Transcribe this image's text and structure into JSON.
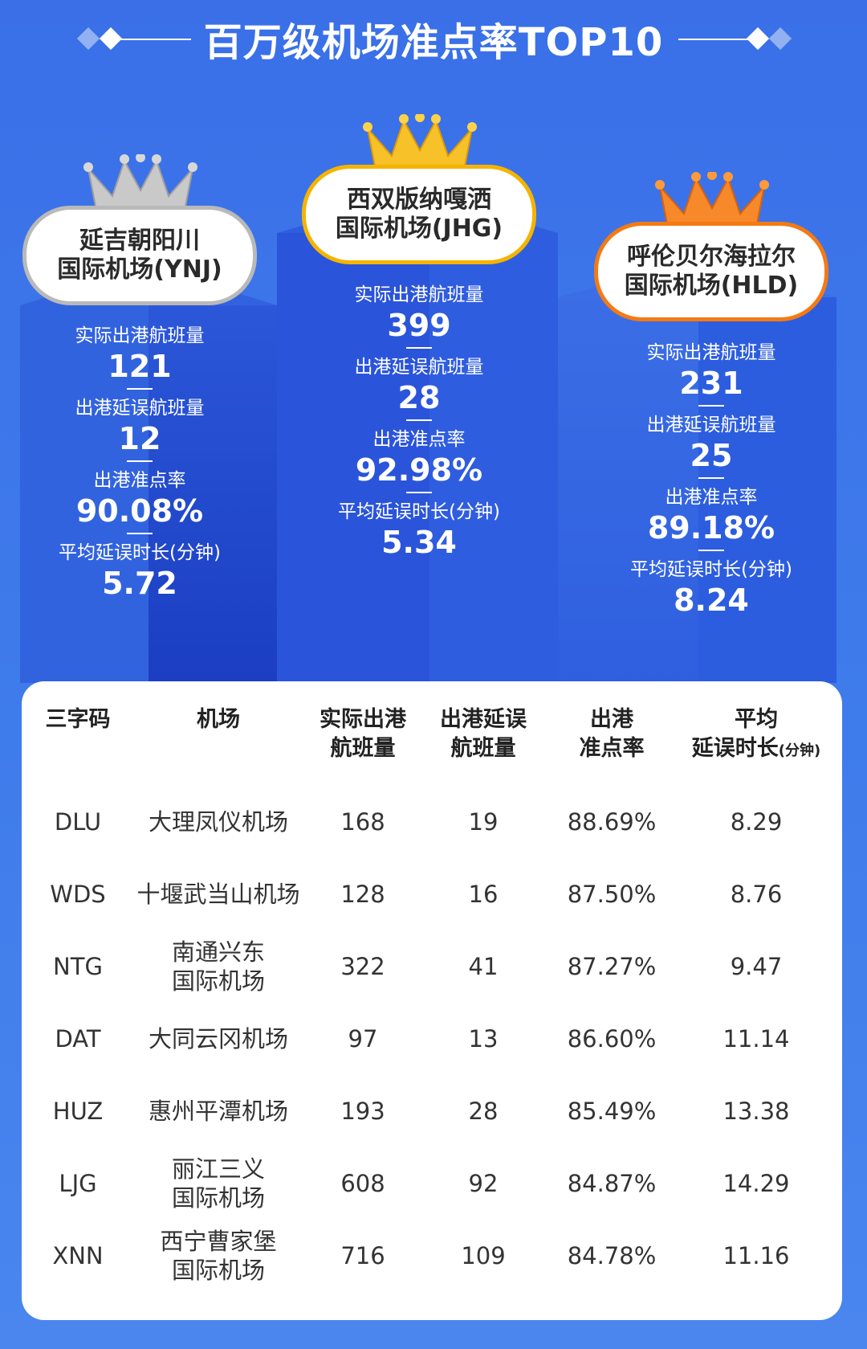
{
  "title": "百万级机场准点率TOP10",
  "top3": [
    {
      "name_line1": "延吉朝阳川",
      "name_line2": "国际机场(YNJ)",
      "actual_label": "实际出港航班量",
      "actual": "121",
      "delay_label": "出港延误航班量",
      "delay": "12",
      "rate_label": "出港准点率",
      "rate": "90.08%",
      "avg_label": "平均延误时长(分钟)",
      "avg": "5.72",
      "crown": "silver-crown-icon"
    },
    {
      "name_line1": "西双版纳嘎洒",
      "name_line2": "国际机场(JHG)",
      "actual_label": "实际出港航班量",
      "actual": "399",
      "delay_label": "出港延误航班量",
      "delay": "28",
      "rate_label": "出港准点率",
      "rate": "92.98%",
      "avg_label": "平均延误时长(分钟)",
      "avg": "5.34",
      "crown": "gold-crown-icon"
    },
    {
      "name_line1": "呼伦贝尔海拉尔",
      "name_line2": "国际机场(HLD)",
      "actual_label": "实际出港航班量",
      "actual": "231",
      "delay_label": "出港延误航班量",
      "delay": "25",
      "rate_label": "出港准点率",
      "rate": "89.18%",
      "avg_label": "平均延误时长(分钟)",
      "avg": "8.24",
      "crown": "bronze-crown-icon"
    }
  ],
  "table": {
    "headers": {
      "code": "三字码",
      "airport": "机场",
      "actual_1": "实际出港",
      "actual_2": "航班量",
      "delay_1": "出港延误",
      "delay_2": "航班量",
      "rate_1": "出港",
      "rate_2": "准点率",
      "avg_1": "平均",
      "avg_2": "延误时长",
      "avg_unit": "(分钟)"
    },
    "rows": [
      {
        "code": "DLU",
        "name1": "大理凤仪机场",
        "name2": "",
        "actual": "168",
        "delay": "19",
        "rate": "88.69%",
        "avg": "8.29"
      },
      {
        "code": "WDS",
        "name1": "十堰武当山机场",
        "name2": "",
        "actual": "128",
        "delay": "16",
        "rate": "87.50%",
        "avg": "8.76"
      },
      {
        "code": "NTG",
        "name1": "南通兴东",
        "name2": "国际机场",
        "actual": "322",
        "delay": "41",
        "rate": "87.27%",
        "avg": "9.47"
      },
      {
        "code": "DAT",
        "name1": "大同云冈机场",
        "name2": "",
        "actual": "97",
        "delay": "13",
        "rate": "86.60%",
        "avg": "11.14"
      },
      {
        "code": "HUZ",
        "name1": "惠州平潭机场",
        "name2": "",
        "actual": "193",
        "delay": "28",
        "rate": "85.49%",
        "avg": "13.38"
      },
      {
        "code": "LJG",
        "name1": "丽江三义",
        "name2": "国际机场",
        "actual": "608",
        "delay": "92",
        "rate": "84.87%",
        "avg": "14.29"
      },
      {
        "code": "XNN",
        "name1": "西宁曹家堡",
        "name2": "国际机场",
        "actual": "716",
        "delay": "109",
        "rate": "84.78%",
        "avg": "11.16"
      }
    ]
  },
  "colors": {
    "background": "#3f7ceb",
    "pillar_dark": "#1f46c9",
    "silver": "#b9b9b9",
    "gold": "#f5b400",
    "bronze": "#f47a14"
  }
}
